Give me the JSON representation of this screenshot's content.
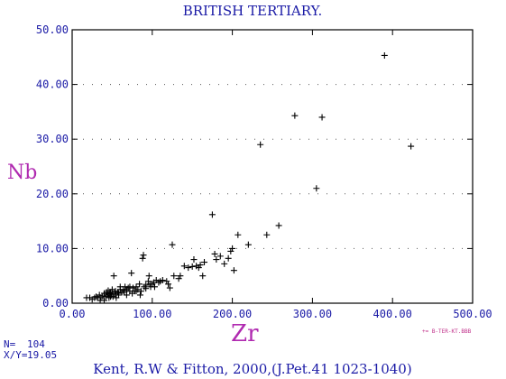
{
  "chart_data": {
    "type": "scatter",
    "title": "BRITISH TERTIARY.",
    "xlabel": "Zr",
    "ylabel": "Nb",
    "xlim": [
      0,
      500
    ],
    "ylim": [
      0,
      50
    ],
    "x_ticks": [
      "0.00",
      "100.00",
      "200.00",
      "300.00",
      "400.00",
      "500.00"
    ],
    "y_ticks": [
      "0.00",
      "10.00",
      "20.00",
      "30.00",
      "40.00",
      "50.00"
    ],
    "grid": "dotted horizontal",
    "marker": "+",
    "points": [
      [
        18,
        1
      ],
      [
        22,
        1
      ],
      [
        25,
        0.7
      ],
      [
        28,
        1
      ],
      [
        30,
        1.2
      ],
      [
        32,
        1
      ],
      [
        34,
        1.5
      ],
      [
        36,
        1
      ],
      [
        38,
        1.3
      ],
      [
        40,
        1.8
      ],
      [
        42,
        1.2
      ],
      [
        43,
        2
      ],
      [
        44,
        1.5
      ],
      [
        45,
        2.3
      ],
      [
        46,
        1
      ],
      [
        47,
        1.7
      ],
      [
        48,
        2
      ],
      [
        49,
        1.5
      ],
      [
        50,
        2.5
      ],
      [
        51,
        1.2
      ],
      [
        52,
        5
      ],
      [
        53,
        1.8
      ],
      [
        54,
        2.2
      ],
      [
        55,
        1.5
      ],
      [
        57,
        2
      ],
      [
        58,
        1.8
      ],
      [
        60,
        2.5
      ],
      [
        62,
        2
      ],
      [
        64,
        2.3
      ],
      [
        66,
        3
      ],
      [
        68,
        2.5
      ],
      [
        70,
        2.8
      ],
      [
        72,
        3
      ],
      [
        74,
        5.5
      ],
      [
        76,
        2.8
      ],
      [
        78,
        2.2
      ],
      [
        80,
        3
      ],
      [
        82,
        2.5
      ],
      [
        84,
        3.5
      ],
      [
        86,
        2.2
      ],
      [
        88,
        8.2
      ],
      [
        89,
        8.8
      ],
      [
        90,
        3
      ],
      [
        92,
        3.3
      ],
      [
        95,
        4
      ],
      [
        97,
        3.5
      ],
      [
        100,
        3.5
      ],
      [
        103,
        3
      ],
      [
        105,
        4.2
      ],
      [
        108,
        3.8
      ],
      [
        110,
        4
      ],
      [
        113,
        4.2
      ],
      [
        118,
        4
      ],
      [
        122,
        2.8
      ],
      [
        125,
        10.7
      ],
      [
        127,
        5
      ],
      [
        133,
        4.5
      ],
      [
        140,
        6.8
      ],
      [
        145,
        6.5
      ],
      [
        150,
        6.7
      ],
      [
        152,
        8
      ],
      [
        155,
        6.8
      ],
      [
        158,
        6.5
      ],
      [
        160,
        7
      ],
      [
        163,
        5
      ],
      [
        175,
        16.2
      ],
      [
        178,
        9
      ],
      [
        185,
        8.6
      ],
      [
        190,
        7.2
      ],
      [
        195,
        8.2
      ],
      [
        198,
        9.5
      ],
      [
        200,
        10
      ],
      [
        202,
        6
      ],
      [
        207,
        12.5
      ],
      [
        220,
        10.7
      ],
      [
        235,
        29
      ],
      [
        243,
        12.5
      ],
      [
        258,
        14.2
      ],
      [
        278,
        34.3
      ],
      [
        305,
        21
      ],
      [
        312,
        34
      ],
      [
        390,
        45.3
      ],
      [
        423,
        28.7
      ],
      [
        45,
        1.8
      ],
      [
        48,
        1.2
      ],
      [
        58,
        1.5
      ],
      [
        60,
        3
      ],
      [
        65,
        2
      ],
      [
        68,
        1.5
      ],
      [
        72,
        2.2
      ],
      [
        75,
        1.8
      ],
      [
        80,
        2.2
      ],
      [
        85,
        1.5
      ],
      [
        92,
        2.7
      ],
      [
        98,
        3
      ],
      [
        120,
        3.5
      ],
      [
        135,
        5
      ],
      [
        165,
        7.5
      ],
      [
        180,
        8
      ],
      [
        96,
        5
      ],
      [
        102,
        3.8
      ],
      [
        40,
        0.5
      ],
      [
        35,
        0.5
      ],
      [
        55,
        1
      ]
    ]
  },
  "file_ref": "+= B-TER-KT.BBB",
  "stats": {
    "n_label": "N=",
    "n_value": "104",
    "xy_label": "X/Y=",
    "xy_value": "19.05"
  },
  "citation": "Kent, R.W & Fitton, 2000,(J.Pet.41 1023-1040)"
}
